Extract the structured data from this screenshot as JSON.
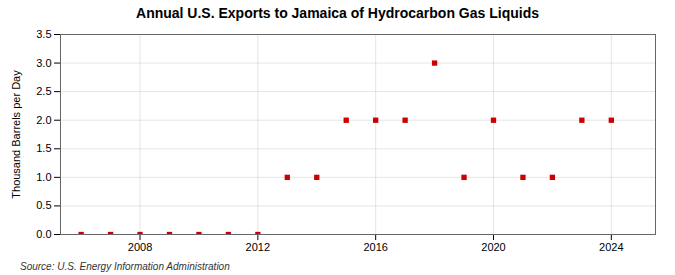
{
  "chart_data": {
    "type": "scatter",
    "title": "Annual U.S. Exports to Jamaica of Hydrocarbon Gas Liquids",
    "ylabel": "Thousand Barrels per Day",
    "source": "Source: U.S. Energy Information Administration",
    "x": [
      2006,
      2007,
      2008,
      2009,
      2010,
      2011,
      2012,
      2013,
      2014,
      2015,
      2016,
      2017,
      2018,
      2019,
      2020,
      2021,
      2022,
      2023,
      2024
    ],
    "values": [
      0.0,
      0.0,
      0.0,
      0.0,
      0.0,
      0.0,
      0.0,
      1.0,
      1.0,
      2.0,
      2.0,
      2.0,
      3.0,
      1.0,
      2.0,
      1.0,
      1.0,
      2.0,
      2.0
    ],
    "color": "#cc0000",
    "marker": "square",
    "xlim": [
      2005.3,
      2025.5
    ],
    "xticks": [
      2008,
      2012,
      2016,
      2020,
      2024
    ],
    "ylim": [
      0,
      3.5
    ],
    "yticks": [
      {
        "value": 0,
        "label": "0.0"
      },
      0.5,
      {
        "value": 1,
        "label": "1.0"
      },
      1.5,
      {
        "value": 2,
        "label": "2.0"
      },
      2.5,
      {
        "value": 3,
        "label": "3.0"
      },
      3.5
    ],
    "grid": true
  }
}
